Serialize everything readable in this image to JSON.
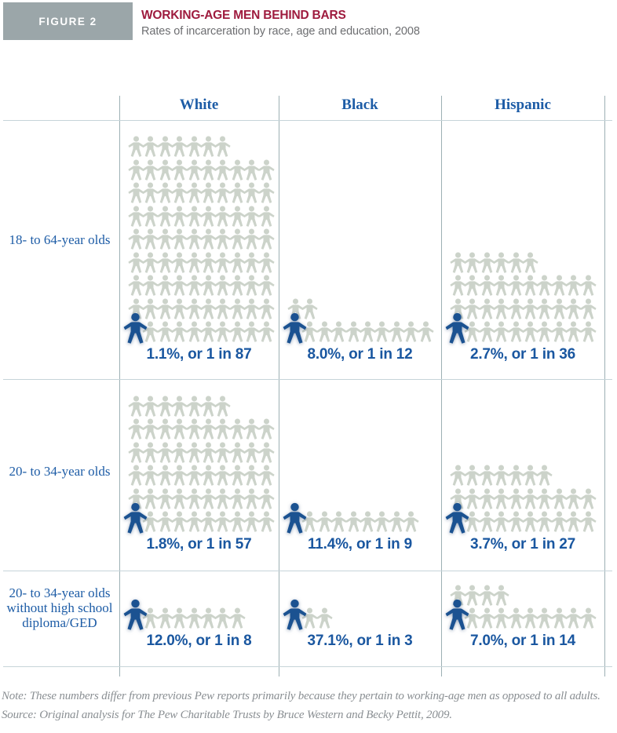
{
  "figure_label": "FIGURE 2",
  "title": "WORKING-AGE MEN BEHIND BARS",
  "subtitle": "Rates of incarceration by race, age and education, 2008",
  "colors": {
    "figure_box": "#9ba6a9",
    "title_red": "#9e1b3e",
    "subtitle_gray": "#6d6e71",
    "label_blue": "#1d5ca6",
    "stat_blue": "#1a57a0",
    "person_gray": "#ccd3ca",
    "person_blue": "#1b5291",
    "gridline": "#c6d4d9"
  },
  "chart_data": {
    "type": "pictogram-table",
    "title": "WORKING-AGE MEN BEHIND BARS",
    "subtitle": "Rates of incarceration by race, age and education, 2008",
    "columns": [
      "White",
      "Black",
      "Hispanic"
    ],
    "rows": [
      "18- to 64-year olds",
      "20- to 34-year olds",
      "20- to 34-year olds without high school diploma/GED"
    ],
    "unit_per_row": 10,
    "legend": "1 blue figure incarcerated out of N total figures",
    "cells": [
      [
        {
          "percent": 1.1,
          "one_in": 87,
          "label": "1.1%, or 1 in 87"
        },
        {
          "percent": 8.0,
          "one_in": 12,
          "label": "8.0%, or 1 in 12"
        },
        {
          "percent": 2.7,
          "one_in": 36,
          "label": "2.7%, or 1 in 36"
        }
      ],
      [
        {
          "percent": 1.8,
          "one_in": 57,
          "label": "1.8%, or 1 in 57"
        },
        {
          "percent": 11.4,
          "one_in": 9,
          "label": "11.4%, or 1 in 9"
        },
        {
          "percent": 3.7,
          "one_in": 27,
          "label": "3.7%, or 1 in 27"
        }
      ],
      [
        {
          "percent": 12.0,
          "one_in": 8,
          "label": "12.0%, or 1 in 8"
        },
        {
          "percent": 37.1,
          "one_in": 3,
          "label": "37.1%, or 1 in 3"
        },
        {
          "percent": 7.0,
          "one_in": 14,
          "label": "7.0%, or 1 in 14"
        }
      ]
    ]
  },
  "note": "Note: These numbers differ from previous Pew reports primarily because they pertain to working-age men as opposed to all adults.",
  "source": "Source: Original analysis for The Pew Charitable Trusts by Bruce Western and Becky Pettit, 2009."
}
